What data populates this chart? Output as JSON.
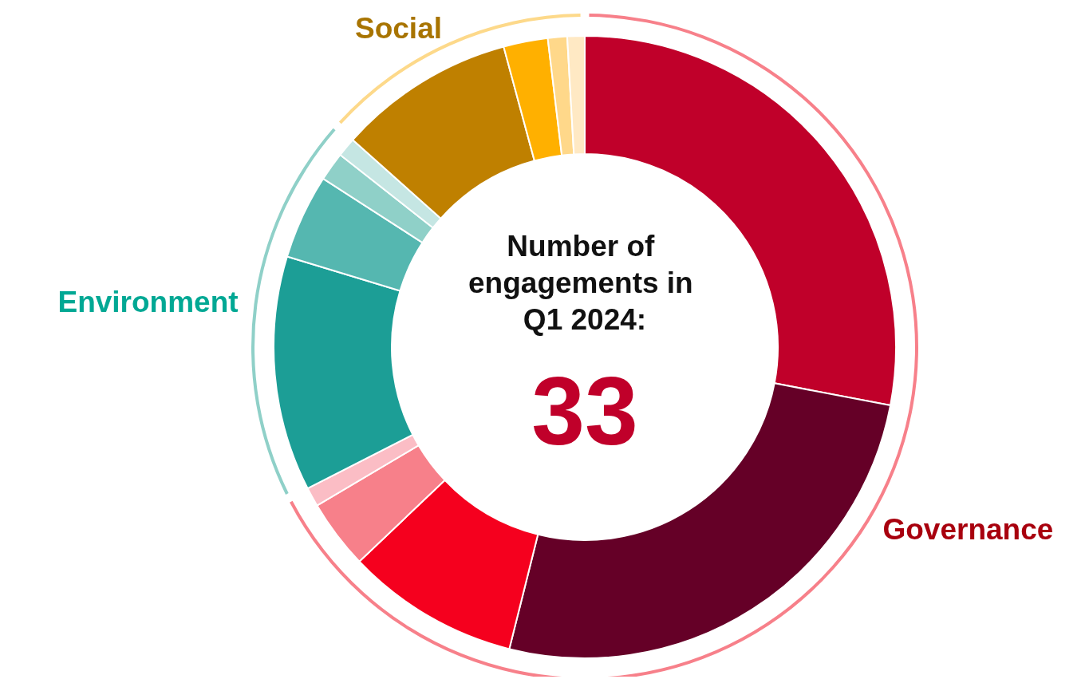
{
  "chart_data": [
    {
      "type": "donut",
      "categories": [
        "Governance",
        "Environment",
        "Social"
      ],
      "values": [
        67.5,
        19.1,
        13.4
      ],
      "colors": [
        "#f7808a",
        "#8fd0c8",
        "#fdd98a"
      ]
    },
    {
      "type": "donut",
      "title": "Number of engagements in Q1 2024:",
      "annotations": [
        "33"
      ],
      "categories": [
        null,
        null,
        null,
        null,
        null,
        null,
        null,
        null,
        null,
        null,
        null,
        null,
        null
      ],
      "values": [
        28.0,
        25.9,
        9.0,
        3.6,
        1.0,
        12.2,
        4.4,
        1.5,
        1.0,
        9.2,
        2.3,
        1.0,
        0.9
      ],
      "colors": [
        "#c0002a",
        "#650027",
        "#f5001e",
        "#f7808a",
        "#fbbdc5",
        "#1c9e96",
        "#55b7b0",
        "#8fd0c8",
        "#c5e6e3",
        "#bf8000",
        "#ffb000",
        "#ffd88a",
        "#ffe9c4"
      ]
    }
  ]
}
